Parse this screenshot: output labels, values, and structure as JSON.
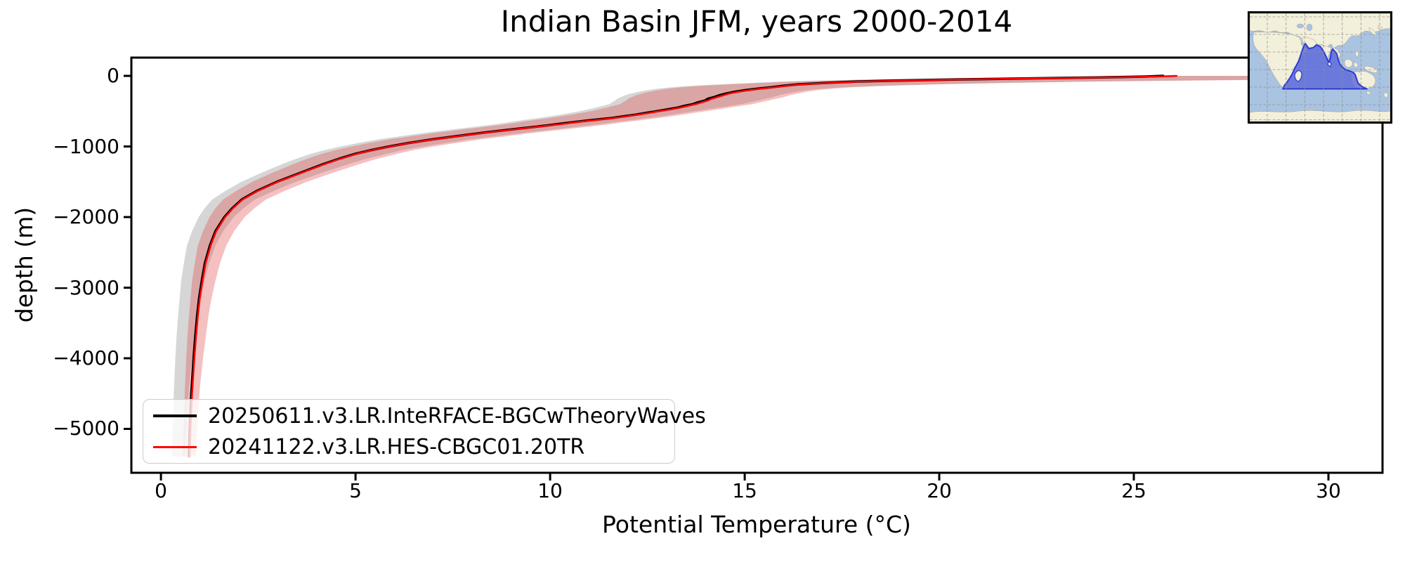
{
  "inset_map": {
    "region": "Indian Basin",
    "ocean_color": "#a9c3e1",
    "land_color": "#f2efda",
    "basin_fill": "#5a66d9",
    "basin_border": "#2d3bd4",
    "grid_color": "#8f8f8f"
  },
  "chart_data": {
    "type": "line",
    "title": "Indian Basin JFM, years 2000-2014",
    "xlabel": "Potential Temperature (°C)",
    "ylabel": "depth (m)",
    "xlim": [
      -0.76,
      31.39
    ],
    "ylim": [
      -5622,
      259
    ],
    "grid": false,
    "legend_position": "lower left",
    "x_ticks": [
      0,
      5,
      10,
      15,
      20,
      25,
      30
    ],
    "x_tick_labels": [
      "0",
      "5",
      "10",
      "15",
      "20",
      "25",
      "30"
    ],
    "y_ticks": [
      0,
      -1000,
      -2000,
      -3000,
      -4000,
      -5000
    ],
    "y_tick_labels": [
      "0",
      "−1000",
      "−2000",
      "−3000",
      "−4000",
      "−5000"
    ],
    "depth": [
      0,
      -10,
      -22,
      -35,
      -50,
      -65,
      -80,
      -100,
      -120,
      -140,
      -160,
      -180,
      -200,
      -225,
      -250,
      -275,
      -300,
      -325,
      -350,
      -375,
      -400,
      -425,
      -450,
      -475,
      -500,
      -525,
      -550,
      -575,
      -600,
      -625,
      -650,
      -675,
      -700,
      -750,
      -800,
      -850,
      -900,
      -950,
      -1000,
      -1050,
      -1100,
      -1175,
      -1250,
      -1375,
      -1500,
      -1625,
      -1750,
      -1875,
      -2000,
      -2200,
      -2400,
      -2650,
      -2900,
      -3150,
      -3400,
      -3700,
      -4000,
      -4250,
      -4500,
      -4750,
      -5000,
      -5200,
      -5390
    ],
    "series": [
      {
        "name": "20250611.v3.LR.InteRFACE-BGCwTheoryWaves",
        "color": "#000000",
        "linewidth": 3.5,
        "temperature": [
          25.75,
          25.3,
          24.1,
          22.45,
          20.45,
          19.05,
          17.85,
          17.05,
          16.38,
          16.0,
          15.7,
          15.35,
          15.05,
          14.75,
          14.52,
          14.35,
          14.22,
          14.05,
          13.98,
          13.8,
          13.68,
          13.45,
          13.28,
          13.0,
          12.74,
          12.45,
          12.19,
          11.85,
          11.54,
          11.1,
          10.7,
          10.3,
          9.95,
          9.15,
          8.36,
          7.66,
          6.96,
          6.37,
          5.87,
          5.42,
          5.02,
          4.57,
          4.17,
          3.57,
          2.98,
          2.48,
          2.08,
          1.83,
          1.63,
          1.4,
          1.26,
          1.13,
          1.05,
          0.98,
          0.93,
          0.88,
          0.84,
          0.81,
          0.78,
          0.76,
          0.74,
          0.73,
          0.72
        ]
      },
      {
        "name": "20241122.v3.LR.HES-CBGC01.20TR",
        "color": "#ff0000",
        "linewidth": 2.4,
        "temperature": [
          26.1,
          25.6,
          24.3,
          22.6,
          20.6,
          19.2,
          18.0,
          17.2,
          16.5,
          16.1,
          15.8,
          15.45,
          15.15,
          14.85,
          14.6,
          14.45,
          14.3,
          14.15,
          14.05,
          13.9,
          13.75,
          13.55,
          13.35,
          13.1,
          12.8,
          12.55,
          12.25,
          11.95,
          11.6,
          11.2,
          10.75,
          10.4,
          10.0,
          9.2,
          8.4,
          7.7,
          7.0,
          6.4,
          5.9,
          5.45,
          5.05,
          4.6,
          4.2,
          3.6,
          3.0,
          2.5,
          2.1,
          1.85,
          1.65,
          1.42,
          1.28,
          1.15,
          1.07,
          1.0,
          0.95,
          0.9,
          0.86,
          0.83,
          0.8,
          0.78,
          0.76,
          0.75,
          0.74
        ]
      }
    ],
    "band": {
      "description": "shaded spread envelope around the profiles (temperature range per depth)",
      "lo": [
        24.8,
        24.0,
        22.2,
        20.3,
        18.4,
        17.2,
        16.2,
        15.4,
        14.6,
        13.9,
        13.4,
        13.05,
        12.8,
        12.55,
        12.35,
        12.2,
        12.1,
        12.0,
        11.95,
        11.87,
        11.8,
        11.62,
        11.45,
        11.25,
        11.05,
        10.8,
        10.55,
        10.25,
        9.95,
        9.6,
        9.3,
        9.0,
        8.65,
        7.9,
        7.15,
        6.5,
        5.85,
        5.35,
        4.9,
        4.5,
        4.15,
        3.75,
        3.4,
        2.85,
        2.35,
        1.95,
        1.6,
        1.4,
        1.25,
        1.08,
        0.95,
        0.87,
        0.8,
        0.76,
        0.72,
        0.68,
        0.65,
        0.63,
        0.61,
        0.6,
        0.58,
        0.57,
        0.56
      ],
      "hi": [
        31.35,
        31.35,
        31.3,
        31.0,
        29.5,
        26.5,
        24.0,
        21.7,
        20.0,
        18.7,
        17.8,
        17.3,
        16.9,
        16.6,
        16.35,
        16.15,
        16.0,
        15.8,
        15.6,
        15.4,
        15.2,
        14.9,
        14.6,
        14.3,
        14.0,
        13.7,
        13.4,
        13.1,
        12.75,
        12.4,
        12.0,
        11.65,
        11.3,
        10.5,
        9.7,
        8.95,
        8.2,
        7.6,
        7.0,
        6.5,
        6.1,
        5.55,
        5.1,
        4.4,
        3.75,
        3.2,
        2.7,
        2.4,
        2.15,
        1.88,
        1.68,
        1.52,
        1.4,
        1.3,
        1.22,
        1.15,
        1.08,
        1.03,
        0.99,
        0.96,
        0.93,
        0.91,
        0.9
      ],
      "red_fill": "rgba(225,70,70,0.34)",
      "gray_fill": "rgba(120,120,120,0.30)",
      "gray_shift": -0.28
    }
  }
}
